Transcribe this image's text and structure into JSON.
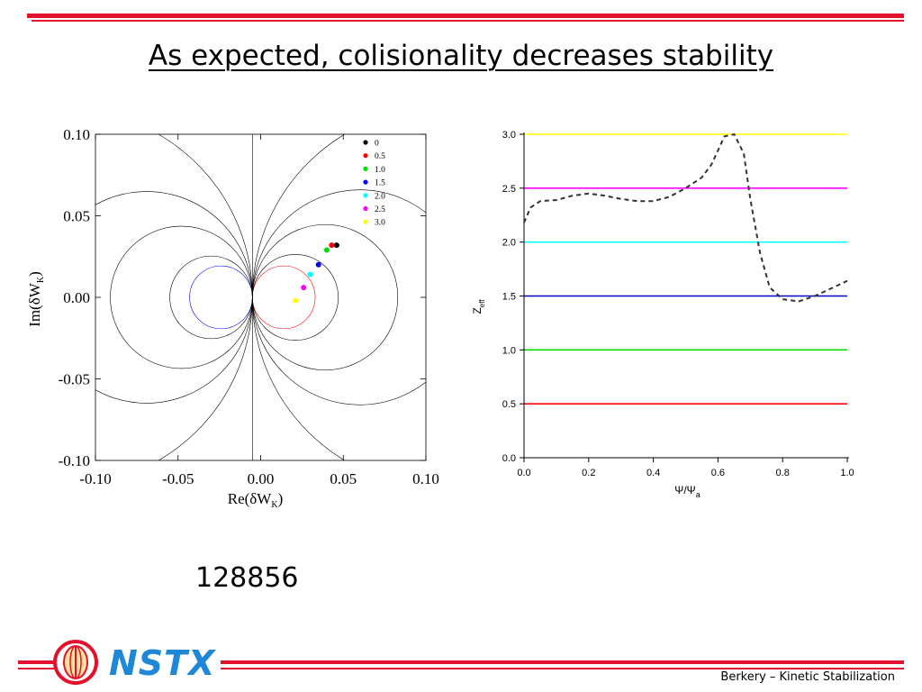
{
  "slide": {
    "title": "As expected, colisionality decreases stability",
    "shot_number": "128856",
    "footer": "Berkery – Kinetic Stabilization",
    "logo_text": "NSTX",
    "colors": {
      "accent_red": "#e3112b",
      "logo_blue": "#1e88d6"
    }
  },
  "chart_data": [
    {
      "type": "scatter",
      "xlabel": "Re(δW",
      "xlabel_sub": "K",
      "xlabel_close": ")",
      "ylabel": "Im(δW",
      "ylabel_sub": "K",
      "ylabel_close": ")",
      "xlim": [
        -0.1,
        0.1
      ],
      "ylim": [
        -0.1,
        0.1
      ],
      "x_ticks": [
        "-0.10",
        "-0.05",
        "0.00",
        "0.05",
        "0.10"
      ],
      "y_ticks": [
        "0.10",
        "0.05",
        "0.00",
        "-0.05",
        "-0.10"
      ],
      "legend_position": "top-right",
      "series": [
        {
          "name": "0",
          "color": "#000000",
          "x": 0.046,
          "y": 0.032
        },
        {
          "name": "0.5",
          "color": "#ff0000",
          "x": 0.043,
          "y": 0.032
        },
        {
          "name": "1.0",
          "color": "#00dd00",
          "x": 0.04,
          "y": 0.029
        },
        {
          "name": "1.5",
          "color": "#0000ff",
          "x": 0.035,
          "y": 0.02
        },
        {
          "name": "2.0",
          "color": "#00ffff",
          "x": 0.03,
          "y": 0.014
        },
        {
          "name": "2.5",
          "color": "#ff00ff",
          "x": 0.026,
          "y": 0.006
        },
        {
          "name": "3.0",
          "color": "#ffff00",
          "x": 0.021,
          "y": -0.002
        }
      ],
      "reference_circles": {
        "right": [
          {
            "center": 0.014,
            "radius": 0.019,
            "color": "#ff0000"
          },
          {
            "center": 0.021,
            "radius": 0.026,
            "color": "#000000"
          },
          {
            "center": 0.039,
            "radius": 0.044,
            "color": "#000000"
          },
          {
            "center": 0.06,
            "radius": 0.065,
            "color": "#000000"
          },
          {
            "center": 0.11,
            "radius": 0.115,
            "color": "#000000"
          }
        ],
        "left": [
          {
            "center": -0.024,
            "radius": 0.019,
            "color": "#0000ff"
          },
          {
            "center": -0.03,
            "radius": 0.025,
            "color": "#000000"
          },
          {
            "center": -0.048,
            "radius": 0.043,
            "color": "#000000"
          },
          {
            "center": -0.069,
            "radius": 0.064,
            "color": "#000000"
          },
          {
            "center": -0.119,
            "radius": 0.114,
            "color": "#000000"
          }
        ],
        "vertical_line_x": -0.005,
        "tangent_x": -0.005
      }
    },
    {
      "type": "line",
      "xlabel": "Ψ/Ψ",
      "xlabel_sub": "a",
      "ylabel": "Z",
      "ylabel_sub": "eff",
      "xlim": [
        0,
        1
      ],
      "ylim": [
        0,
        3
      ],
      "x_ticks": [
        "0.0",
        "0.2",
        "0.4",
        "0.6",
        "0.8",
        "1.0"
      ],
      "y_ticks": [
        "0.0",
        "0.5",
        "1.0",
        "1.5",
        "2.0",
        "2.5",
        "3.0"
      ],
      "horizontal_lines": [
        {
          "y": 0.5,
          "color": "#ff0000"
        },
        {
          "y": 1.0,
          "color": "#00dd00"
        },
        {
          "y": 1.5,
          "color": "#0000cc"
        },
        {
          "y": 2.0,
          "color": "#00ffff"
        },
        {
          "y": 2.5,
          "color": "#ff00ff"
        },
        {
          "y": 3.0,
          "color": "#ffff00"
        }
      ],
      "series": [
        {
          "style": "dashed",
          "color": "#333333",
          "x": [
            0.0,
            0.02,
            0.05,
            0.1,
            0.15,
            0.2,
            0.25,
            0.3,
            0.35,
            0.4,
            0.45,
            0.5,
            0.55,
            0.58,
            0.62,
            0.65,
            0.68,
            0.7,
            0.73,
            0.76,
            0.8,
            0.85,
            0.9,
            0.95,
            1.0
          ],
          "y": [
            2.18,
            2.32,
            2.38,
            2.39,
            2.43,
            2.45,
            2.43,
            2.4,
            2.38,
            2.38,
            2.42,
            2.5,
            2.6,
            2.72,
            2.98,
            3.0,
            2.82,
            2.4,
            1.9,
            1.58,
            1.47,
            1.45,
            1.5,
            1.57,
            1.64
          ]
        }
      ]
    }
  ]
}
